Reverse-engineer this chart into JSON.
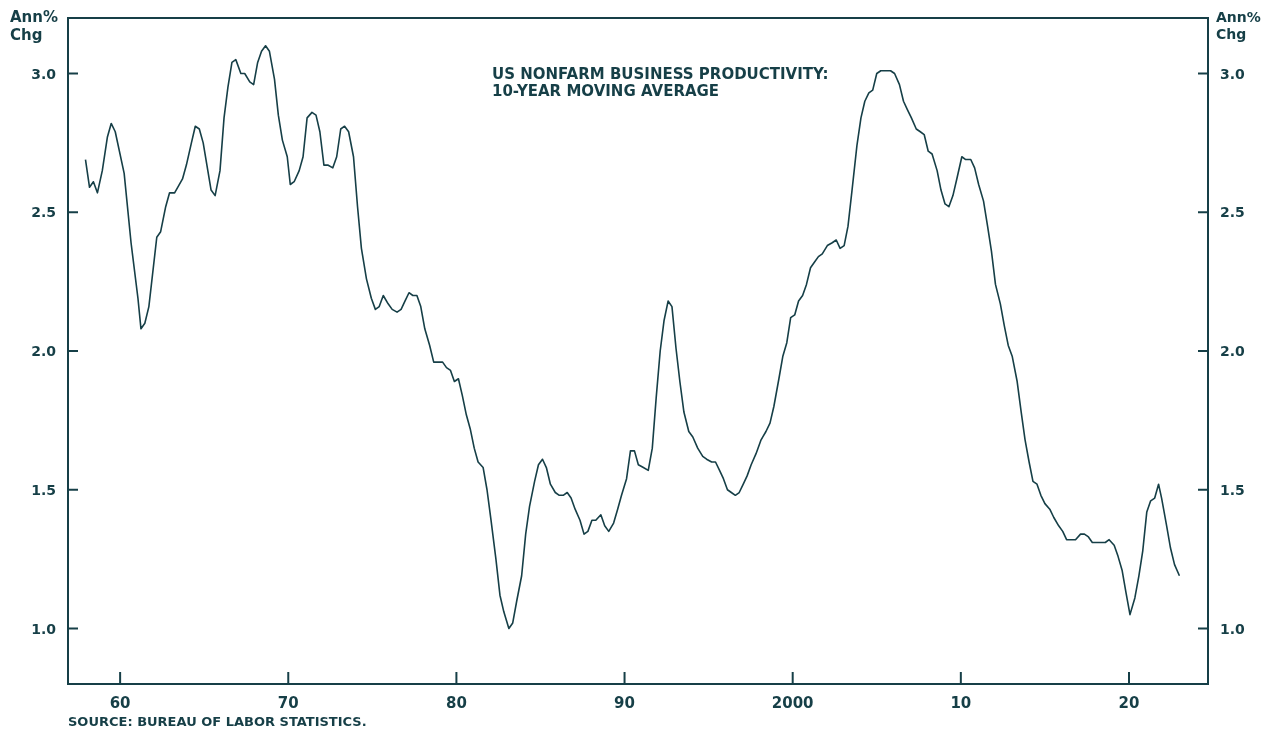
{
  "chart_data": {
    "type": "line",
    "ylabel": "Ann%\nChg",
    "y2label": "Ann%\nChg",
    "xlim": [
      1956.9,
      2024.7
    ],
    "ylim": [
      0.8,
      3.2
    ],
    "y2lim": [
      0.8,
      3.2
    ],
    "xticks": [
      {
        "value": 1960,
        "label": "60"
      },
      {
        "value": 1970,
        "label": "70"
      },
      {
        "value": 1980,
        "label": "80"
      },
      {
        "value": 1990,
        "label": "90"
      },
      {
        "value": 2000,
        "label": "2000"
      },
      {
        "value": 2010,
        "label": "10"
      },
      {
        "value": 2020,
        "label": "20"
      }
    ],
    "yticks": [
      {
        "value": 1,
        "label": "1.0"
      },
      {
        "value": 1.5,
        "label": "1.5"
      },
      {
        "value": 2,
        "label": "2.0"
      },
      {
        "value": 2.5,
        "label": "2.5"
      },
      {
        "value": 3,
        "label": "3.0"
      }
    ],
    "y2ticks": [
      {
        "value": 1,
        "label": "1.0"
      },
      {
        "value": 1.5,
        "label": "1.5"
      },
      {
        "value": 2,
        "label": "2.0"
      },
      {
        "value": 2.5,
        "label": "2.5"
      },
      {
        "value": 3,
        "label": "3.0"
      }
    ],
    "annotations": [
      "US NONFARM BUSINESS PRODUCTIVITY:\n10-YEAR MOVING AVERAGE",
      "SOURCE: BUREAU OF LABOR STATISTICS."
    ],
    "series": [
      {
        "color": "#163f47",
        "x": [
          1957.94,
          1958.18,
          1958.41,
          1958.65,
          1958.94,
          1959.24,
          1959.47,
          1959.71,
          1960.24,
          1960.65,
          1961.06,
          1961.24,
          1961.47,
          1961.71,
          1962.18,
          1962.41,
          1962.71,
          1962.94,
          1963.24,
          1963.71,
          1963.94,
          1964.24,
          1964.47,
          1964.71,
          1964.94,
          1965.41,
          1965.65,
          1965.94,
          1966.18,
          1966.41,
          1966.65,
          1966.88,
          1967.18,
          1967.41,
          1967.71,
          1967.94,
          1968.18,
          1968.41,
          1968.65,
          1968.88,
          1969.18,
          1969.41,
          1969.65,
          1969.94,
          1970.12,
          1970.35,
          1970.65,
          1970.88,
          1971.12,
          1971.41,
          1971.65,
          1971.88,
          1972.12,
          1972.35,
          1972.65,
          1972.88,
          1973.12,
          1973.35,
          1973.59,
          1973.88,
          1974.12,
          1974.35,
          1974.65,
          1974.94,
          1975.18,
          1975.41,
          1975.65,
          1975.94,
          1976.18,
          1976.47,
          1976.71,
          1976.94,
          1977.18,
          1977.41,
          1977.65,
          1977.88,
          1978.12,
          1978.41,
          1978.65,
          1978.88,
          1979.18,
          1979.41,
          1979.65,
          1979.88,
          1980.12,
          1980.35,
          1980.59,
          1980.82,
          1981.06,
          1981.29,
          1981.59,
          1981.82,
          1982.06,
          1982.35,
          1982.59,
          1982.82,
          1983.12,
          1983.35,
          1983.59,
          1983.88,
          1984.12,
          1984.35,
          1984.65,
          1984.88,
          1985.12,
          1985.35,
          1985.59,
          1985.88,
          1986.12,
          1986.35,
          1986.59,
          1986.82,
          1987.06,
          1987.35,
          1987.59,
          1987.82,
          1988.06,
          1988.29,
          1988.59,
          1988.82,
          1989.06,
          1989.35,
          1989.59,
          1989.82,
          1990.12,
          1990.35,
          1990.59,
          1990.82,
          1991.12,
          1991.41,
          1991.65,
          1991.88,
          1992.12,
          1992.35,
          1992.59,
          1992.82,
          1993.06,
          1993.29,
          1993.53,
          1993.82,
          1994.06,
          1994.35,
          1994.65,
          1994.88,
          1995.18,
          1995.41,
          1995.65,
          1995.88,
          1996.12,
          1996.35,
          1996.59,
          1996.82,
          1997.06,
          1997.29,
          1997.53,
          1997.82,
          1998.12,
          1998.41,
          1998.65,
          1998.88,
          1999.18,
          1999.41,
          1999.65,
          1999.88,
          2000.12,
          2000.35,
          2000.59,
          2000.82,
          2001.06,
          2001.29,
          2001.53,
          2001.76,
          2002.06,
          2002.35,
          2002.59,
          2002.82,
          2003.06,
          2003.29,
          2003.53,
          2003.82,
          2004.06,
          2004.29,
          2004.53,
          2004.76,
          2005.0,
          2005.24,
          2005.53,
          2005.82,
          2006.06,
          2006.35,
          2006.59,
          2006.82,
          2007.06,
          2007.35,
          2007.59,
          2007.82,
          2008.06,
          2008.29,
          2008.59,
          2008.82,
          2009.06,
          2009.29,
          2009.53,
          2009.76,
          2010.06,
          2010.29,
          2010.59,
          2010.82,
          2011.06,
          2011.35,
          2011.59,
          2011.82,
          2012.06,
          2012.35,
          2012.59,
          2012.82,
          2013.06,
          2013.35,
          2013.59,
          2013.82,
          2014.06,
          2014.29,
          2014.53,
          2014.76,
          2015.0,
          2015.29,
          2015.53,
          2015.82,
          2016.06,
          2016.29,
          2016.59,
          2016.82,
          2017.12,
          2017.35,
          2017.59,
          2017.82,
          2018.12,
          2018.35,
          2018.59,
          2018.82,
          2019.12,
          2019.35,
          2019.59,
          2019.82,
          2020.06,
          2020.35,
          2020.59,
          2020.82,
          2021.06,
          2021.29,
          2021.53,
          2021.76,
          2021.94,
          2022.24,
          2022.47,
          2022.71,
          2023.0
        ],
        "values": [
          2.69,
          2.59,
          2.61,
          2.57,
          2.65,
          2.77,
          2.82,
          2.79,
          2.64,
          2.39,
          2.19,
          2.08,
          2.1,
          2.16,
          2.41,
          2.43,
          2.52,
          2.57,
          2.57,
          2.62,
          2.67,
          2.75,
          2.81,
          2.8,
          2.75,
          2.58,
          2.56,
          2.65,
          2.84,
          2.95,
          3.04,
          3.05,
          3.0,
          3.0,
          2.97,
          2.96,
          3.04,
          3.08,
          3.1,
          3.08,
          2.98,
          2.85,
          2.76,
          2.7,
          2.6,
          2.61,
          2.65,
          2.7,
          2.84,
          2.86,
          2.85,
          2.79,
          2.67,
          2.67,
          2.66,
          2.7,
          2.8,
          2.81,
          2.79,
          2.7,
          2.52,
          2.37,
          2.26,
          2.19,
          2.15,
          2.16,
          2.2,
          2.17,
          2.15,
          2.14,
          2.15,
          2.18,
          2.21,
          2.2,
          2.2,
          2.16,
          2.08,
          2.02,
          1.96,
          1.96,
          1.96,
          1.94,
          1.93,
          1.89,
          1.9,
          1.84,
          1.77,
          1.72,
          1.65,
          1.6,
          1.58,
          1.5,
          1.39,
          1.25,
          1.12,
          1.06,
          1.0,
          1.02,
          1.1,
          1.19,
          1.34,
          1.44,
          1.53,
          1.59,
          1.61,
          1.58,
          1.52,
          1.49,
          1.48,
          1.48,
          1.49,
          1.47,
          1.43,
          1.39,
          1.34,
          1.35,
          1.39,
          1.39,
          1.41,
          1.37,
          1.35,
          1.38,
          1.43,
          1.48,
          1.54,
          1.64,
          1.64,
          1.59,
          1.58,
          1.57,
          1.65,
          1.83,
          2.0,
          2.11,
          2.18,
          2.16,
          2.01,
          1.89,
          1.78,
          1.71,
          1.69,
          1.65,
          1.62,
          1.61,
          1.6,
          1.6,
          1.57,
          1.54,
          1.5,
          1.49,
          1.48,
          1.49,
          1.52,
          1.55,
          1.59,
          1.63,
          1.68,
          1.71,
          1.74,
          1.8,
          1.9,
          1.98,
          2.03,
          2.12,
          2.13,
          2.18,
          2.2,
          2.24,
          2.3,
          2.32,
          2.34,
          2.35,
          2.38,
          2.39,
          2.4,
          2.37,
          2.38,
          2.45,
          2.58,
          2.74,
          2.84,
          2.9,
          2.93,
          2.94,
          3.0,
          3.01,
          3.01,
          3.01,
          3.0,
          2.96,
          2.9,
          2.87,
          2.84,
          2.8,
          2.79,
          2.78,
          2.72,
          2.71,
          2.65,
          2.58,
          2.53,
          2.52,
          2.56,
          2.62,
          2.7,
          2.69,
          2.69,
          2.66,
          2.6,
          2.54,
          2.45,
          2.36,
          2.24,
          2.17,
          2.09,
          2.02,
          1.98,
          1.89,
          1.78,
          1.68,
          1.6,
          1.53,
          1.52,
          1.48,
          1.45,
          1.43,
          1.4,
          1.37,
          1.35,
          1.32,
          1.32,
          1.32,
          1.34,
          1.34,
          1.33,
          1.31,
          1.31,
          1.31,
          1.31,
          1.32,
          1.3,
          1.26,
          1.21,
          1.13,
          1.05,
          1.11,
          1.19,
          1.28,
          1.42,
          1.46,
          1.47,
          1.52,
          1.47,
          1.37,
          1.29,
          1.23,
          1.19
        ]
      }
    ]
  }
}
